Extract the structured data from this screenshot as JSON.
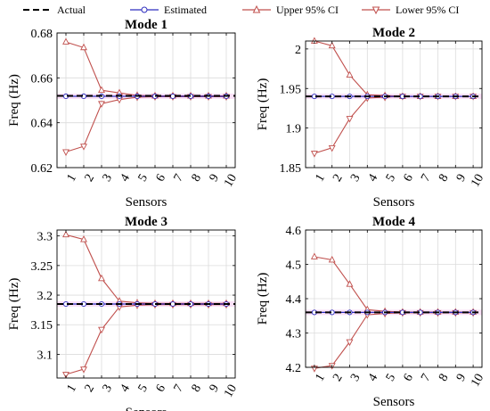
{
  "legend": {
    "actual": "Actual",
    "estimated": "Estimated",
    "upper": "Upper 95% CI",
    "lower": "Lower 95% CI"
  },
  "colors": {
    "actual": "#000000",
    "estimated": "#2e2ebf",
    "ci": "#c0504d",
    "highlight": "#f6c9f0",
    "grid": "#dcdcdc"
  },
  "chart_data": [
    {
      "type": "line",
      "title": "Mode 1",
      "xlabel": "Sensors",
      "ylabel": "Freq (Hz)",
      "x": [
        1,
        2,
        3,
        4,
        5,
        6,
        7,
        8,
        9,
        10
      ],
      "ylim": [
        0.62,
        0.68
      ],
      "yticks": [
        "0.62",
        "0.64",
        "0.66",
        "0.68"
      ],
      "grid": true,
      "series": [
        {
          "name": "Actual",
          "values": [
            0.652,
            0.652,
            0.652,
            0.652,
            0.652,
            0.652,
            0.652,
            0.652,
            0.652,
            0.652
          ]
        },
        {
          "name": "Estimated",
          "values": [
            0.6518,
            0.6518,
            0.6518,
            0.6518,
            0.6518,
            0.6518,
            0.6518,
            0.6518,
            0.6518,
            0.6518
          ]
        },
        {
          "name": "Upper 95% CI",
          "values": [
            0.676,
            0.6735,
            0.6545,
            0.6533,
            0.6522,
            0.652,
            0.652,
            0.652,
            0.652,
            0.652
          ]
        },
        {
          "name": "Lower 95% CI",
          "values": [
            0.627,
            0.6295,
            0.6485,
            0.6503,
            0.6514,
            0.6516,
            0.6516,
            0.6516,
            0.6516,
            0.6516
          ]
        }
      ]
    },
    {
      "type": "line",
      "title": "Mode 2",
      "xlabel": "Sensors",
      "ylabel": "Freq (Hz)",
      "x": [
        1,
        2,
        3,
        4,
        5,
        6,
        7,
        8,
        9,
        10
      ],
      "ylim": [
        1.85,
        2.01
      ],
      "yticks": [
        "1.85",
        "1.9",
        "1.95",
        "2"
      ],
      "grid": true,
      "series": [
        {
          "name": "Actual",
          "values": [
            1.94,
            1.94,
            1.94,
            1.94,
            1.94,
            1.94,
            1.94,
            1.94,
            1.94,
            1.94
          ]
        },
        {
          "name": "Estimated",
          "values": [
            1.94,
            1.94,
            1.94,
            1.94,
            1.94,
            1.94,
            1.94,
            1.94,
            1.94,
            1.94
          ]
        },
        {
          "name": "Upper 95% CI",
          "values": [
            2.01,
            2.004,
            1.967,
            1.942,
            1.941,
            1.94,
            1.94,
            1.94,
            1.94,
            1.94
          ]
        },
        {
          "name": "Lower 95% CI",
          "values": [
            1.868,
            1.875,
            1.912,
            1.938,
            1.939,
            1.94,
            1.94,
            1.94,
            1.94,
            1.94
          ]
        }
      ]
    },
    {
      "type": "line",
      "title": "Mode 3",
      "xlabel": "Sensors",
      "ylabel": "Freq (Hz)",
      "x": [
        1,
        2,
        3,
        4,
        5,
        6,
        7,
        8,
        9,
        10
      ],
      "ylim": [
        3.06,
        3.31
      ],
      "yticks": [
        "3.1",
        "3.15",
        "3.2",
        "3.25",
        "3.3"
      ],
      "grid": true,
      "series": [
        {
          "name": "Actual",
          "values": [
            3.185,
            3.185,
            3.185,
            3.185,
            3.185,
            3.185,
            3.185,
            3.185,
            3.185,
            3.185
          ]
        },
        {
          "name": "Estimated",
          "values": [
            3.185,
            3.185,
            3.185,
            3.185,
            3.185,
            3.185,
            3.185,
            3.185,
            3.185,
            3.185
          ]
        },
        {
          "name": "Upper 95% CI",
          "values": [
            3.302,
            3.294,
            3.228,
            3.19,
            3.187,
            3.186,
            3.186,
            3.186,
            3.186,
            3.186
          ]
        },
        {
          "name": "Lower 95% CI",
          "values": [
            3.066,
            3.075,
            3.142,
            3.18,
            3.183,
            3.184,
            3.184,
            3.184,
            3.184,
            3.184
          ]
        }
      ]
    },
    {
      "type": "line",
      "title": "Mode 4",
      "xlabel": "Sensors",
      "ylabel": "Freq (Hz)",
      "x": [
        1,
        2,
        3,
        4,
        5,
        6,
        7,
        8,
        9,
        10
      ],
      "ylim": [
        4.2,
        4.6
      ],
      "yticks": [
        "4.2",
        "4.3",
        "4.4",
        "4.5",
        "4.6"
      ],
      "grid": true,
      "series": [
        {
          "name": "Actual",
          "values": [
            4.36,
            4.36,
            4.36,
            4.36,
            4.36,
            4.36,
            4.36,
            4.36,
            4.36,
            4.36
          ]
        },
        {
          "name": "Estimated",
          "values": [
            4.36,
            4.36,
            4.36,
            4.36,
            4.36,
            4.36,
            4.36,
            4.36,
            4.36,
            4.36
          ]
        },
        {
          "name": "Upper 95% CI",
          "values": [
            4.522,
            4.513,
            4.442,
            4.368,
            4.363,
            4.361,
            4.361,
            4.361,
            4.361,
            4.361
          ]
        },
        {
          "name": "Lower 95% CI",
          "values": [
            4.197,
            4.205,
            4.274,
            4.353,
            4.357,
            4.359,
            4.359,
            4.359,
            4.359,
            4.359
          ]
        }
      ]
    }
  ]
}
